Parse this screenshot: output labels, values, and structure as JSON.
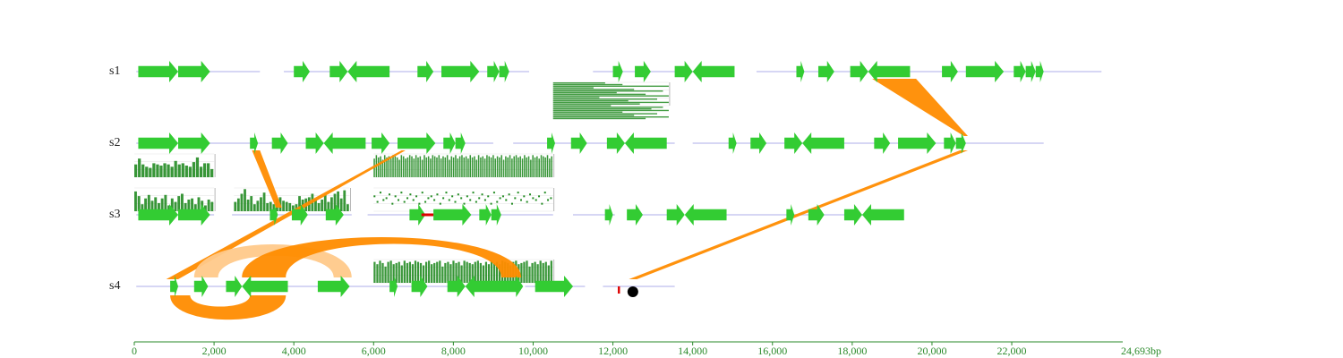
{
  "colors": {
    "gene": "#33cc33",
    "backbone": "#c8c8f0",
    "link_strong": "#ff8c00",
    "link_faint": "#ffc98a",
    "hist_bar": "#228b22",
    "axis": "#2a8a2a",
    "marker_red": "#dd0000",
    "marker_dot": "#000000"
  },
  "genome": {
    "length_bp": 24693,
    "axis": {
      "ticks": [
        "0",
        "2,000",
        "4,000",
        "6,000",
        "8,000",
        "10,000",
        "12,000",
        "14,000",
        "16,000",
        "18,000",
        "20,000",
        "22,000"
      ],
      "end_label": "24,693bp"
    }
  },
  "tracks": [
    {
      "label": "s1",
      "segments": [
        [
          50,
          3150
        ],
        [
          3750,
          9900
        ],
        [
          11500,
          15000
        ],
        [
          15600,
          24250
        ]
      ],
      "genes": [
        {
          "start": 100,
          "end": 1100,
          "strand": 1
        },
        {
          "start": 1100,
          "end": 1900,
          "strand": 1
        },
        {
          "start": 4000,
          "end": 4400,
          "strand": 1
        },
        {
          "start": 4900,
          "end": 5350,
          "strand": 1
        },
        {
          "start": 5350,
          "end": 6400,
          "strand": -1
        },
        {
          "start": 7100,
          "end": 7500,
          "strand": 1
        },
        {
          "start": 7700,
          "end": 8650,
          "strand": 1
        },
        {
          "start": 8850,
          "end": 9150,
          "strand": 1
        },
        {
          "start": 9150,
          "end": 9400,
          "strand": 1
        },
        {
          "start": 12000,
          "end": 12250,
          "strand": 1
        },
        {
          "start": 12550,
          "end": 12950,
          "strand": 1
        },
        {
          "start": 13550,
          "end": 14000,
          "strand": 1
        },
        {
          "start": 14000,
          "end": 15050,
          "strand": -1
        },
        {
          "start": 16600,
          "end": 16800,
          "strand": 1
        },
        {
          "start": 17150,
          "end": 17550,
          "strand": 1
        },
        {
          "start": 17950,
          "end": 18400,
          "strand": 1
        },
        {
          "start": 18400,
          "end": 19450,
          "strand": -1
        },
        {
          "start": 20250,
          "end": 20650,
          "strand": 1
        },
        {
          "start": 20850,
          "end": 21800,
          "strand": 1
        },
        {
          "start": 22050,
          "end": 22350,
          "strand": 1
        },
        {
          "start": 22350,
          "end": 22600,
          "strand": 1
        },
        {
          "start": 22600,
          "end": 22800,
          "strand": 1
        }
      ]
    },
    {
      "label": "s2",
      "segments": [
        [
          50,
          9000
        ],
        [
          9500,
          13550
        ],
        [
          14000,
          22800
        ]
      ],
      "genes": [
        {
          "start": 100,
          "end": 1100,
          "strand": 1
        },
        {
          "start": 1100,
          "end": 1900,
          "strand": 1
        },
        {
          "start": 2900,
          "end": 3100,
          "strand": 1
        },
        {
          "start": 3450,
          "end": 3850,
          "strand": 1
        },
        {
          "start": 4300,
          "end": 4750,
          "strand": 1
        },
        {
          "start": 4750,
          "end": 5800,
          "strand": -1
        },
        {
          "start": 5950,
          "end": 6400,
          "strand": 1
        },
        {
          "start": 6600,
          "end": 7550,
          "strand": 1
        },
        {
          "start": 7750,
          "end": 8050,
          "strand": 1
        },
        {
          "start": 8050,
          "end": 8300,
          "strand": 1
        },
        {
          "start": 10350,
          "end": 10550,
          "strand": 1
        },
        {
          "start": 10950,
          "end": 11350,
          "strand": 1
        },
        {
          "start": 11850,
          "end": 12300,
          "strand": 1
        },
        {
          "start": 12300,
          "end": 13350,
          "strand": -1
        },
        {
          "start": 14900,
          "end": 15100,
          "strand": 1
        },
        {
          "start": 15450,
          "end": 15850,
          "strand": 1
        },
        {
          "start": 16300,
          "end": 16750,
          "strand": 1
        },
        {
          "start": 16750,
          "end": 17800,
          "strand": -1
        },
        {
          "start": 18550,
          "end": 18950,
          "strand": 1
        },
        {
          "start": 19150,
          "end": 20100,
          "strand": 1
        },
        {
          "start": 20300,
          "end": 20600,
          "strand": 1
        },
        {
          "start": 20600,
          "end": 20850,
          "strand": 1
        }
      ]
    },
    {
      "label": "s3",
      "segments": [
        [
          50,
          2000
        ],
        [
          2450,
          5450
        ],
        [
          5850,
          10500
        ],
        [
          11000,
          12050
        ],
        [
          12400,
          13650
        ],
        [
          14550,
          18800
        ]
      ],
      "genes": [
        {
          "start": 100,
          "end": 1100,
          "strand": 1
        },
        {
          "start": 1100,
          "end": 1900,
          "strand": 1
        },
        {
          "start": 3400,
          "end": 3600,
          "strand": 1
        },
        {
          "start": 3950,
          "end": 4350,
          "strand": 1
        },
        {
          "start": 4800,
          "end": 5250,
          "strand": 1
        },
        {
          "start": 6900,
          "end": 7300,
          "strand": 1
        },
        {
          "start": 7500,
          "end": 8450,
          "strand": 1
        },
        {
          "start": 8650,
          "end": 8950,
          "strand": 1
        },
        {
          "start": 8950,
          "end": 9200,
          "strand": 1
        },
        {
          "start": 11800,
          "end": 12000,
          "strand": 1
        },
        {
          "start": 12350,
          "end": 12750,
          "strand": 1
        },
        {
          "start": 13350,
          "end": 13800,
          "strand": 1
        },
        {
          "start": 13800,
          "end": 14850,
          "strand": -1
        },
        {
          "start": 16350,
          "end": 16550,
          "strand": 1
        },
        {
          "start": 16900,
          "end": 17300,
          "strand": 1
        },
        {
          "start": 17800,
          "end": 18250,
          "strand": 1
        },
        {
          "start": 18250,
          "end": 19300,
          "strand": -1
        }
      ],
      "markers": [
        {
          "type": "bar",
          "start": 7200,
          "end": 7500
        }
      ]
    },
    {
      "label": "s4",
      "segments": [
        [
          50,
          9350
        ],
        [
          9800,
          11300
        ],
        [
          11750,
          13550
        ]
      ],
      "genes": [
        {
          "start": 900,
          "end": 1100,
          "strand": 1
        },
        {
          "start": 1500,
          "end": 1850,
          "strand": 1
        },
        {
          "start": 2300,
          "end": 2700,
          "strand": 1
        },
        {
          "start": 2700,
          "end": 3850,
          "strand": -1
        },
        {
          "start": 4600,
          "end": 5400,
          "strand": 1
        },
        {
          "start": 6400,
          "end": 6600,
          "strand": 1
        },
        {
          "start": 6950,
          "end": 7350,
          "strand": 1
        },
        {
          "start": 7850,
          "end": 8300,
          "strand": 1
        },
        {
          "start": 8300,
          "end": 9350,
          "strand": -1
        },
        {
          "start": 9350,
          "end": 9750,
          "strand": 1
        },
        {
          "start": 10050,
          "end": 11000,
          "strand": 1
        }
      ],
      "markers": [
        {
          "type": "tick",
          "pos": 12150
        },
        {
          "type": "dot",
          "pos": 12500
        }
      ]
    }
  ],
  "links": [
    {
      "from_track": 0,
      "from": [
        18500,
        19600
      ],
      "to_track": 1,
      "to": [
        20800,
        20900
      ],
      "style": "strong"
    },
    {
      "from_track": 1,
      "from": [
        20700,
        20900
      ],
      "to_track": 3,
      "to": [
        12400,
        12600
      ],
      "style": "strong"
    },
    {
      "from_track": 1,
      "from": [
        2950,
        3150
      ],
      "to_track": 2,
      "to": [
        3550,
        3700
      ],
      "style": "strong"
    },
    {
      "from_track": 1,
      "from": [
        6700,
        6800
      ],
      "to_track": 3,
      "to": [
        800,
        1100
      ],
      "style": "strong"
    },
    {
      "type": "arc",
      "track": 3,
      "from": [
        1500,
        2100
      ],
      "to": [
        5000,
        5450
      ],
      "side": "above",
      "style": "faint"
    },
    {
      "type": "arc",
      "track": 3,
      "from": [
        2700,
        3800
      ],
      "to": [
        9200,
        9700
      ],
      "side": "above",
      "style": "strong"
    },
    {
      "type": "arc",
      "track": 3,
      "from": [
        900,
        1400
      ],
      "to": [
        2900,
        3800
      ],
      "side": "below",
      "style": "strong"
    }
  ],
  "plots": [
    {
      "kind": "hist",
      "track": 1,
      "offset": "below",
      "range": [
        0,
        2000
      ],
      "values": [
        0.55,
        0.8,
        0.55,
        0.45,
        0.4,
        0.6,
        0.55,
        0.5,
        0.6,
        0.55,
        0.45,
        0.7,
        0.55,
        0.6,
        0.5,
        0.45,
        0.65,
        0.85,
        0.45,
        0.6,
        0.6,
        0.35
      ]
    },
    {
      "kind": "hist",
      "track": 2,
      "offset": "above",
      "range": [
        0,
        2000
      ],
      "values": [
        0.85,
        0.65,
        0.3,
        0.55,
        0.7,
        0.45,
        0.6,
        0.35,
        0.55,
        0.7,
        0.25,
        0.55,
        0.4,
        0.65,
        0.75,
        0.35,
        0.5,
        0.55,
        0.3,
        0.6,
        0.45,
        0.25,
        0.5,
        0.4
      ]
    },
    {
      "kind": "hist",
      "track": 2,
      "offset": "above",
      "range": [
        2500,
        5400
      ],
      "values": [
        0.4,
        0.55,
        0.75,
        0.95,
        0.5,
        0.65,
        0.3,
        0.45,
        0.6,
        0.8,
        0.35,
        0.4,
        0.3,
        0.5,
        0.6,
        0.45,
        0.4,
        0.35,
        0.25,
        0.3,
        0.65,
        0.5,
        0.55,
        0.6,
        0.75,
        0.5,
        0.35,
        0.5,
        0.7,
        0.4,
        0.6,
        0.75,
        0.85,
        0.55,
        0.9,
        0.3
      ]
    },
    {
      "kind": "hist",
      "track": 1,
      "offset": "below",
      "range": [
        6000,
        10500
      ],
      "values": [
        0.8,
        0.95,
        0.85,
        0.9,
        0.75,
        0.95,
        0.85,
        0.9,
        0.8,
        0.95,
        0.9,
        0.85,
        0.75,
        0.95,
        0.9,
        0.8,
        0.85,
        0.95,
        0.9,
        0.8,
        0.95,
        0.85,
        0.9,
        0.75,
        0.95,
        0.85,
        0.9,
        0.8,
        0.95,
        0.9,
        0.85,
        0.95,
        0.8,
        0.9,
        0.85,
        0.95,
        0.75,
        0.9,
        0.85,
        0.95,
        0.8,
        0.9,
        0.95,
        0.85,
        0.9,
        0.8,
        0.95,
        0.85,
        0.9,
        0.75,
        0.95,
        0.85,
        0.9,
        0.8,
        0.95,
        0.9,
        0.85,
        0.95,
        0.8,
        0.9,
        0.85,
        0.95,
        0.75,
        0.9,
        0.85,
        0.95,
        0.8,
        0.9,
        0.95,
        0.85,
        0.9,
        0.8,
        0.95,
        0.85,
        0.9,
        0.75,
        0.95,
        0.85,
        0.9,
        0.8,
        0.95,
        0.9,
        0.85,
        0.95,
        0.8,
        0.9
      ]
    },
    {
      "kind": "scatter",
      "track": 2,
      "offset": "above",
      "range": [
        6000,
        10500
      ],
      "values": [
        0.2,
        0.35,
        0.1,
        0.3,
        0.25,
        0.15,
        0.4,
        0.2,
        0.3,
        0.1,
        0.35,
        0.25,
        0.15,
        0.3,
        0.2,
        0.4,
        0.1,
        0.35,
        0.25,
        0.2,
        0.3,
        0.15,
        0.4,
        0.25,
        0.1,
        0.3,
        0.2,
        0.35,
        0.15,
        0.25,
        0.4,
        0.2,
        0.3,
        0.1,
        0.35,
        0.25,
        0.15,
        0.3,
        0.2,
        0.4,
        0.1,
        0.35,
        0.25,
        0.2,
        0.3,
        0.15,
        0.4,
        0.25,
        0.1,
        0.3,
        0.2,
        0.35,
        0.15,
        0.25,
        0.3,
        0.2,
        0.4,
        0.1,
        0.3,
        0.25
      ]
    },
    {
      "kind": "hbars",
      "track": 0,
      "offset": "below",
      "range": [
        10500,
        13400
      ],
      "values": [
        0.45,
        0.6,
        1.0,
        0.35,
        0.7,
        0.95,
        0.55,
        0.8,
        1.0,
        0.4,
        0.9,
        0.65,
        1.0,
        0.75,
        0.5,
        0.95,
        0.85,
        1.0,
        0.6,
        0.9,
        0.7,
        1.0,
        0.8
      ]
    },
    {
      "kind": "hist",
      "track": 3,
      "offset": "above",
      "range": [
        6000,
        10500
      ],
      "values": [
        0.9,
        0.8,
        0.95,
        0.85,
        0.7,
        0.9,
        0.95,
        0.8,
        0.85,
        0.9,
        0.75,
        0.95,
        0.85,
        0.9,
        0.8,
        0.95,
        0.9,
        0.85,
        0.75,
        0.9,
        0.95,
        0.8,
        0.85,
        0.9,
        0.95,
        0.7,
        0.85,
        0.9,
        0.8,
        0.95,
        0.85,
        0.9,
        0.75,
        0.95,
        0.9,
        0.85,
        0.8,
        0.9,
        0.95,
        0.85,
        0.75,
        0.9,
        0.8,
        0.95,
        0.85,
        0.9,
        0.8,
        0.95,
        0.9,
        0.85,
        0.75,
        0.9,
        0.95,
        0.8,
        0.85,
        0.9,
        0.95,
        0.7,
        0.85,
        0.9,
        0.8,
        0.95,
        0.85,
        0.9,
        0.75,
        0.95
      ]
    }
  ]
}
